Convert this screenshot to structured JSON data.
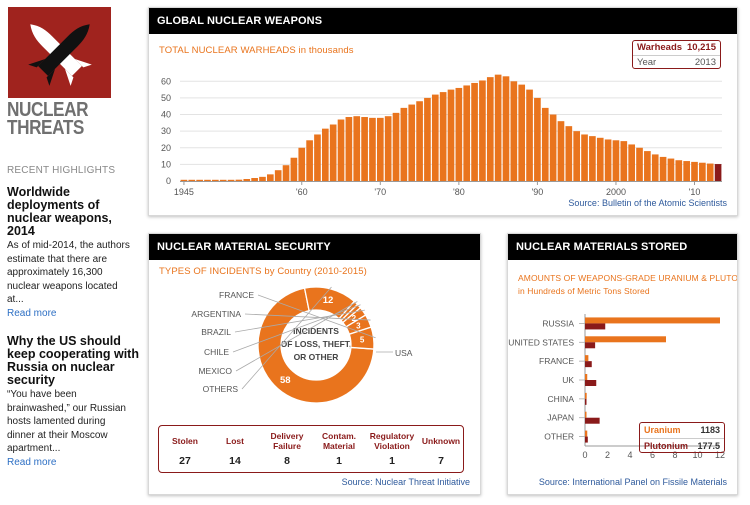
{
  "brand": {
    "line1": "NUCLEAR",
    "line2": "THREATS"
  },
  "sidebar": {
    "heading": "RECENT HIGHLIGHTS",
    "stories": [
      {
        "title_lines": [
          "Worldwide",
          "deployments of",
          "nuclear weapons,",
          "2014"
        ],
        "text_lines": [
          "As of mid-2014, the authors",
          "estimate that there are",
          "approximately 16,300",
          "nuclear weapons located",
          "at..."
        ],
        "read_more": "Read more"
      },
      {
        "title_lines": [
          "Why the US should",
          "keep cooperating with",
          "Russia on nuclear",
          "security"
        ],
        "text_lines": [
          "“You have been",
          "brainwashed,” our Russian",
          "hosts lamented during",
          "dinner at their Moscow",
          "apartment..."
        ],
        "read_more": "Read more"
      }
    ]
  },
  "colors": {
    "orange": "#e9741d",
    "dark_red": "#8a1a1a",
    "gray_line": "#c8c8c8"
  },
  "global": {
    "header": "GLOBAL NUCLEAR WEAPONS",
    "subtitle_caps": "TOTAL NUCLEAR WARHEADS",
    "subtitle_rest": " in thousands",
    "callout": {
      "label1": "Warheads",
      "value1": "10,215",
      "label2": "Year",
      "value2": "2013"
    },
    "source": "Source: Bulletin of the Atomic Scientists"
  },
  "security": {
    "header": "NUCLEAR MATERIAL SECURITY",
    "subtitle_caps": "TYPES OF INCIDENTS",
    "subtitle_rest": " by Country (2010-2015)",
    "center_lines": [
      "INCIDENTS",
      "OF LOSS, THEFT,",
      "OR OTHER"
    ],
    "incidents": [
      {
        "label_lines": [
          "Stolen"
        ],
        "value": "27"
      },
      {
        "label_lines": [
          "Lost"
        ],
        "value": "14"
      },
      {
        "label_lines": [
          "Delivery",
          "Failure"
        ],
        "value": "8"
      },
      {
        "label_lines": [
          "Contam.",
          "Material"
        ],
        "value": "1"
      },
      {
        "label_lines": [
          "Regulatory",
          "Violation"
        ],
        "value": "1"
      },
      {
        "label_lines": [
          "Unknown"
        ],
        "value": "7"
      }
    ],
    "source": "Source: Nuclear Threat Initiative"
  },
  "stored": {
    "header": "NUCLEAR MATERIALS STORED",
    "subtitle_line1": "AMOUNTS OF WEAPONS-GRADE URANIUM & PLUTONIUM",
    "subtitle_line2": "in Hundreds of Metric Tons Stored",
    "legend": {
      "label1": "Uranium",
      "value1": "1183",
      "label2": "Plutonium",
      "value2": "177.5"
    },
    "source": "Source: International Panel on Fissile Materials"
  },
  "chart_data": [
    {
      "type": "bar",
      "title": "TOTAL NUCLEAR WARHEADS in thousands",
      "xlabel": "",
      "ylabel": "",
      "x_tick_labels": [
        "1945",
        "'60",
        "'70",
        "'80",
        "'90",
        "2000",
        "'10"
      ],
      "x_tick_years": [
        1945,
        1960,
        1970,
        1980,
        1990,
        2000,
        2010
      ],
      "yticks": [
        0,
        10,
        20,
        30,
        40,
        50,
        60
      ],
      "ylim": [
        0,
        68
      ],
      "highlight_year": 2013,
      "years": [
        1945,
        1946,
        1947,
        1948,
        1949,
        1950,
        1951,
        1952,
        1953,
        1954,
        1955,
        1956,
        1957,
        1958,
        1959,
        1960,
        1961,
        1962,
        1963,
        1964,
        1965,
        1966,
        1967,
        1968,
        1969,
        1970,
        1971,
        1972,
        1973,
        1974,
        1975,
        1976,
        1977,
        1978,
        1979,
        1980,
        1981,
        1982,
        1983,
        1984,
        1985,
        1986,
        1987,
        1988,
        1989,
        1990,
        1991,
        1992,
        1993,
        1994,
        1995,
        1996,
        1997,
        1998,
        1999,
        2000,
        2001,
        2002,
        2003,
        2004,
        2005,
        2006,
        2007,
        2008,
        2009,
        2010,
        2011,
        2012,
        2013
      ],
      "values": [
        0.01,
        0.01,
        0.03,
        0.05,
        0.2,
        0.3,
        0.45,
        0.8,
        1.2,
        1.8,
        2.5,
        4,
        6.5,
        9.5,
        14,
        20,
        24.5,
        28,
        31.5,
        34,
        37,
        38.5,
        39,
        38.5,
        38,
        38,
        39,
        41,
        44,
        46,
        48,
        50,
        52,
        53.5,
        55,
        56,
        57.5,
        59,
        60.5,
        62.5,
        64,
        63,
        60,
        58,
        55,
        50,
        44,
        40,
        36,
        33,
        30,
        28,
        27,
        26,
        25,
        24.5,
        24,
        22,
        20,
        18,
        16,
        14.5,
        13.5,
        12.5,
        12,
        11.5,
        11,
        10.5,
        10.2
      ]
    },
    {
      "type": "pie",
      "title": "TYPES OF INCIDENTS by Country (2010-2015)",
      "slices": [
        {
          "label": "USA",
          "value": 58,
          "show_value": true
        },
        {
          "label": "OTHERS",
          "value": 12,
          "show_value": true
        },
        {
          "label": "MEXICO",
          "value": 1,
          "show_value": false
        },
        {
          "label": "CHILE",
          "value": 1,
          "show_value": false
        },
        {
          "label": "BRAZIL",
          "value": 2,
          "show_value": true
        },
        {
          "label": "ARGENTINA",
          "value": 3,
          "show_value": true
        },
        {
          "label": "FRANCE",
          "value": 5,
          "show_value": true
        }
      ]
    },
    {
      "type": "bar",
      "orientation": "horizontal",
      "title": "AMOUNTS OF WEAPONS-GRADE URANIUM & PLUTONIUM in Hundreds of Metric Tons Stored",
      "categories": [
        "RUSSIA",
        "UNITED STATES",
        "FRANCE",
        "UK",
        "CHINA",
        "JAPAN",
        "OTHER"
      ],
      "series": [
        {
          "name": "Uranium",
          "values": [
            12,
            7.2,
            0.3,
            0.2,
            0.15,
            0.1,
            0.2
          ]
        },
        {
          "name": "Plutonium",
          "values": [
            1.8,
            0.9,
            0.6,
            1.0,
            0.02,
            1.3,
            0.25
          ]
        }
      ],
      "xticks": [
        0,
        2,
        4,
        6,
        8,
        10,
        12
      ],
      "xlim": [
        0,
        12
      ]
    }
  ]
}
